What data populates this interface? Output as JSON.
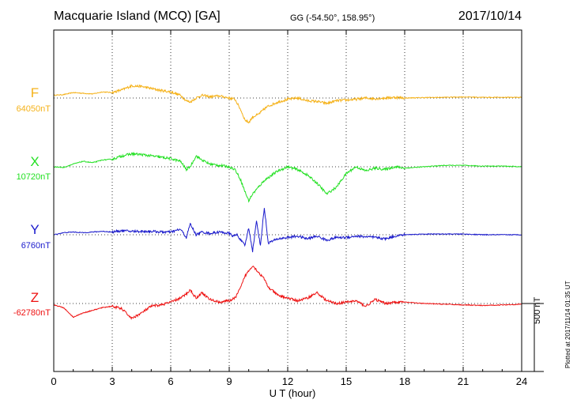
{
  "header": {
    "title": "Macquarie Island (MCQ)  [GA]",
    "coords": "GG (-54.50°, 158.95°)",
    "date": "2017/10/14"
  },
  "plotted_note": "Plotted at 2017/11/14 01:35 UT",
  "scale_label": "500 nT",
  "colors": {
    "F": "#f5b21a",
    "X": "#22e022",
    "Y": "#1a1acc",
    "Z": "#ee1111",
    "grid": "#000000"
  },
  "chart_data": {
    "type": "line",
    "title": "Macquarie Island (MCQ)  [GA]",
    "xlabel": "U T (hour)",
    "ylabel": "",
    "xlim": [
      0,
      24
    ],
    "x_ticks": [
      "0",
      "3",
      "6",
      "9",
      "12",
      "15",
      "18",
      "21",
      "24"
    ],
    "units": "nT",
    "scale_bar_nT": 500,
    "grid": true,
    "series": [
      {
        "name": "F",
        "baseline_label": "64050nT",
        "x": [
          0,
          0.5,
          1,
          1.5,
          2,
          2.5,
          3,
          3.5,
          4,
          4.5,
          5,
          5.5,
          6,
          6.5,
          6.8,
          7,
          7.3,
          7.6,
          8,
          8.5,
          9,
          9.3,
          9.6,
          9.8,
          10,
          10.2,
          10.5,
          10.8,
          11,
          11.5,
          12,
          12.5,
          13,
          13.5,
          14,
          14.5,
          15,
          15.5,
          16,
          16.5,
          17,
          17.5,
          18,
          19,
          20,
          21,
          22,
          23,
          24
        ],
        "y": [
          20,
          25,
          40,
          35,
          30,
          45,
          40,
          60,
          90,
          85,
          70,
          55,
          45,
          20,
          -20,
          -30,
          0,
          20,
          10,
          15,
          0,
          -10,
          -90,
          -160,
          -180,
          -140,
          -120,
          -80,
          -60,
          -30,
          -10,
          0,
          -20,
          -25,
          -40,
          -20,
          -15,
          -10,
          0,
          -5,
          0,
          5,
          0,
          3,
          5,
          8,
          5,
          5,
          5
        ]
      },
      {
        "name": "X",
        "baseline_label": "10720nT",
        "x": [
          0,
          0.5,
          1,
          1.5,
          2,
          2.5,
          3,
          3.5,
          4,
          4.5,
          5,
          5.5,
          6,
          6.5,
          6.8,
          7,
          7.3,
          7.6,
          8,
          8.5,
          9,
          9.3,
          9.6,
          9.8,
          10,
          10.2,
          10.5,
          10.8,
          11,
          11.5,
          12,
          12.5,
          13,
          13.5,
          14,
          14.5,
          15,
          15.5,
          16,
          16.5,
          17,
          17.5,
          18,
          19,
          20,
          21,
          22,
          23,
          24
        ],
        "y": [
          0,
          -5,
          20,
          40,
          30,
          50,
          55,
          80,
          95,
          90,
          80,
          70,
          60,
          40,
          -20,
          0,
          80,
          50,
          20,
          10,
          0,
          -20,
          -100,
          -180,
          -250,
          -200,
          -150,
          -100,
          -80,
          -30,
          0,
          -20,
          -60,
          -120,
          -200,
          -150,
          -50,
          0,
          -30,
          -10,
          -20,
          0,
          -10,
          0,
          10,
          10,
          5,
          5,
          0
        ]
      },
      {
        "name": "Y",
        "baseline_label": "6760nT",
        "x": [
          0,
          0.5,
          1,
          1.5,
          2,
          2.5,
          3,
          3.5,
          4,
          4.5,
          5,
          5.5,
          6,
          6.5,
          6.8,
          7,
          7.3,
          7.6,
          8,
          8.5,
          9,
          9.2,
          9.4,
          9.6,
          9.8,
          10,
          10.2,
          10.4,
          10.6,
          10.8,
          11,
          11.5,
          12,
          12.5,
          13,
          13.5,
          14,
          14.5,
          15,
          15.5,
          16,
          16.5,
          17,
          17.5,
          18,
          19,
          20,
          21,
          22,
          23,
          24
        ],
        "y": [
          0,
          15,
          20,
          15,
          20,
          25,
          20,
          30,
          25,
          25,
          25,
          20,
          20,
          40,
          -20,
          80,
          0,
          20,
          10,
          20,
          10,
          -10,
          0,
          -40,
          -80,
          50,
          -120,
          100,
          -80,
          200,
          -60,
          -30,
          -20,
          -10,
          -30,
          -10,
          -40,
          -20,
          -20,
          -10,
          -15,
          -20,
          -30,
          -10,
          0,
          5,
          5,
          5,
          0,
          0,
          0
        ]
      },
      {
        "name": "Z",
        "baseline_label": "-62780nT",
        "x": [
          0,
          0.5,
          1,
          1.5,
          2,
          2.5,
          3,
          3.5,
          4,
          4.5,
          5,
          5.5,
          6,
          6.5,
          6.8,
          7,
          7.3,
          7.6,
          8,
          8.5,
          9,
          9.3,
          9.6,
          9.8,
          10,
          10.2,
          10.5,
          10.8,
          11,
          11.5,
          12,
          12.5,
          13,
          13.5,
          14,
          14.5,
          15,
          15.5,
          16,
          16.5,
          17,
          17.5,
          18,
          19,
          20,
          21,
          22,
          23,
          24
        ],
        "y": [
          -10,
          -30,
          -100,
          -70,
          -50,
          -30,
          -20,
          -40,
          -110,
          -70,
          -20,
          -10,
          10,
          40,
          70,
          100,
          40,
          80,
          30,
          10,
          20,
          40,
          120,
          200,
          240,
          280,
          230,
          180,
          120,
          60,
          40,
          20,
          40,
          80,
          20,
          0,
          10,
          20,
          -20,
          30,
          0,
          10,
          10,
          0,
          -5,
          -10,
          -15,
          -10,
          -5
        ]
      }
    ]
  }
}
